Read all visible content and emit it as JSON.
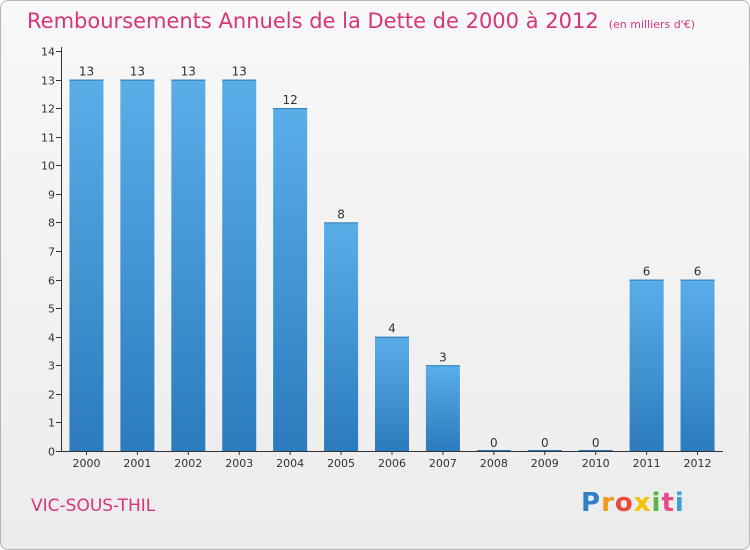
{
  "title": "Remboursements Annuels de la Dette de 2000 à 2012",
  "unit_note": "(en milliers d'€)",
  "commune": "VIC-SOUS-THIL",
  "brand": {
    "letters": [
      "P",
      "r",
      "o",
      "x",
      "i",
      "t",
      "i"
    ],
    "colors": [
      "#2f80c9",
      "#f29a1c",
      "#e94b3c",
      "#f5c400",
      "#5bb543",
      "#e94b8a",
      "#3aa0d8"
    ]
  },
  "colors": {
    "bar_top": "#5aaee8",
    "bar_bottom": "#2b7bbd",
    "title": "#d8347a",
    "axis": "#333333"
  },
  "chart_data": {
    "type": "bar",
    "title": "Remboursements Annuels de la Dette de 2000 à 2012",
    "categories": [
      "2000",
      "2001",
      "2002",
      "2003",
      "2004",
      "2005",
      "2006",
      "2007",
      "2008",
      "2009",
      "2010",
      "2011",
      "2012"
    ],
    "values": [
      13,
      13,
      13,
      13,
      12,
      8,
      4,
      3,
      0,
      0,
      0,
      6,
      6
    ],
    "labels": [
      "13",
      "13",
      "13",
      "13",
      "12",
      "8",
      "4",
      "3",
      "0",
      "0",
      "0",
      "6",
      "6"
    ],
    "yticks": [
      0,
      1,
      2,
      3,
      4,
      5,
      6,
      7,
      8,
      9,
      10,
      11,
      12,
      13,
      14
    ],
    "ylim": [
      0,
      14
    ],
    "grid": false,
    "legend": "none"
  }
}
